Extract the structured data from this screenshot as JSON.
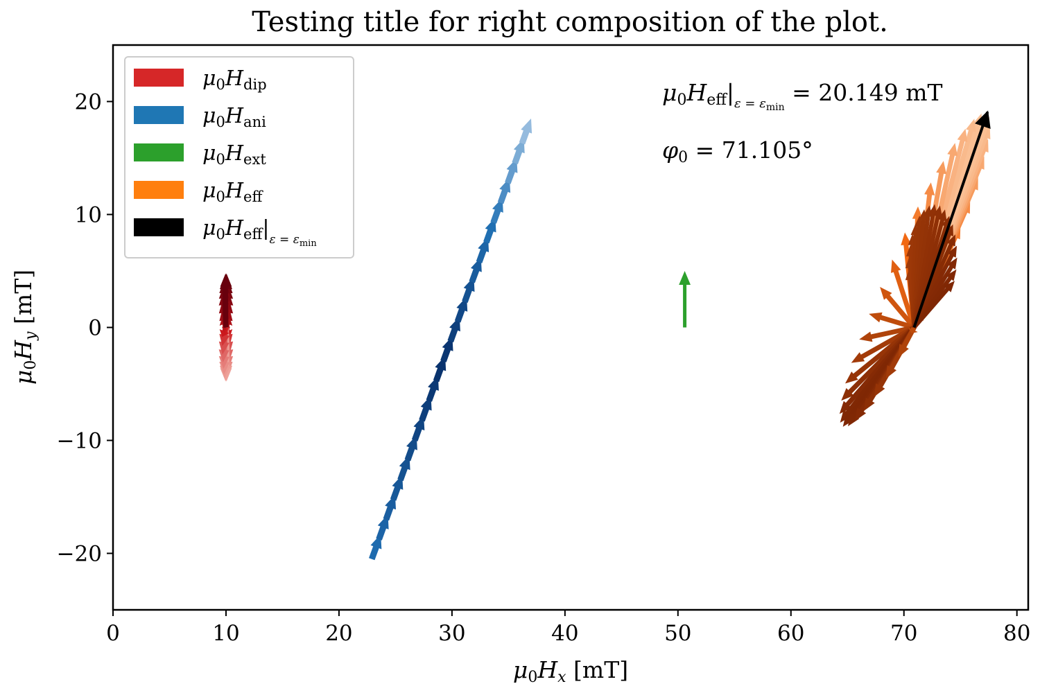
{
  "chart_data": {
    "type": "quiver",
    "title": "Testing title for right composition of the plot.",
    "xlabel": "μ₀Hₓ [mT]",
    "ylabel": "μ₀Hᵧ [mT]",
    "xlim": [
      0,
      81
    ],
    "ylim": [
      -25,
      25
    ],
    "xticks": [
      "0",
      "10",
      "20",
      "30",
      "40",
      "50",
      "60",
      "70",
      "80"
    ],
    "yticks": [
      "−20",
      "−10",
      "0",
      "10",
      "20"
    ],
    "grid": false,
    "legend_placement": "upper-left",
    "legend": [
      {
        "label": "μ₀H_dip",
        "color": "#d62728"
      },
      {
        "label": "μ₀H_ani",
        "color": "#1f77b4"
      },
      {
        "label": "μ₀H_ext",
        "color": "#2ca02c"
      },
      {
        "label": "μ₀H_eff",
        "color": "#ff7f0e"
      },
      {
        "label": "μ₀H_eff|ε = ε_min",
        "color": "#000000"
      }
    ],
    "annotations": {
      "heff_min": "μ₀H_eff|ε = ε_min = 20.149 mT",
      "phi0": "φ₀ = 71.105°"
    },
    "series": [
      {
        "name": "μ₀H_dip",
        "origin": [
          10,
          0
        ],
        "pattern": "ellipse",
        "amp_x": 0.35,
        "amp_y": 4.8,
        "colormap": "Reds"
      },
      {
        "name": "μ₀H_ani",
        "origin": [
          30.3,
          0
        ],
        "pattern": "line",
        "end_a": [
          37,
          18.5
        ],
        "end_b": [
          23.7,
          -18.3
        ],
        "colormap": "Blues"
      },
      {
        "name": "μ₀H_ext",
        "origin": [
          50.6,
          0
        ],
        "vector": [
          0,
          5
        ],
        "color": "#2ca02c"
      },
      {
        "name": "μ₀H_eff",
        "origin": [
          70.9,
          0
        ],
        "pattern": "ellipse-tilted",
        "far_a": [
          77.3,
          19
        ],
        "far_b": [
          64.6,
          -8.8
        ],
        "colormap": "Oranges"
      },
      {
        "name": "μ₀H_eff|ε = ε_min",
        "origin": [
          70.9,
          0
        ],
        "vector": [
          6.5,
          19.07
        ],
        "color": "#000000"
      }
    ]
  }
}
